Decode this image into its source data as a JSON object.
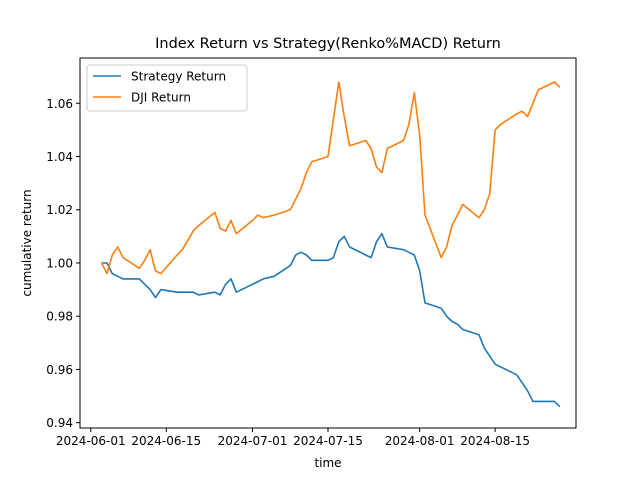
{
  "chart_data": {
    "type": "line",
    "title": "Index Return vs Strategy(Renko%MACD) Return",
    "xlabel": "time",
    "ylabel": "cumulative return",
    "xlim": [
      "2024-05-30",
      "2024-08-30"
    ],
    "ylim": [
      0.938,
      1.077
    ],
    "xticks": [
      "2024-06-01",
      "2024-06-15",
      "2024-07-01",
      "2024-07-15",
      "2024-08-01",
      "2024-08-15"
    ],
    "yticks": [
      "0.94",
      "0.96",
      "0.98",
      "1.00",
      "1.02",
      "1.04",
      "1.06"
    ],
    "grid": false,
    "legend_position": "top-left",
    "series": [
      {
        "name": "Strategy Return",
        "color": "#1f77b4",
        "x": [
          "2024-06-03",
          "2024-06-04",
          "2024-06-05",
          "2024-06-06",
          "2024-06-07",
          "2024-06-10",
          "2024-06-11",
          "2024-06-12",
          "2024-06-13",
          "2024-06-14",
          "2024-06-17",
          "2024-06-18",
          "2024-06-20",
          "2024-06-21",
          "2024-06-24",
          "2024-06-25",
          "2024-06-26",
          "2024-06-27",
          "2024-06-28",
          "2024-07-01",
          "2024-07-02",
          "2024-07-03",
          "2024-07-05",
          "2024-07-08",
          "2024-07-09",
          "2024-07-10",
          "2024-07-11",
          "2024-07-12",
          "2024-07-15",
          "2024-07-16",
          "2024-07-17",
          "2024-07-18",
          "2024-07-19",
          "2024-07-22",
          "2024-07-23",
          "2024-07-24",
          "2024-07-25",
          "2024-07-26",
          "2024-07-29",
          "2024-07-30",
          "2024-07-31",
          "2024-08-01",
          "2024-08-02",
          "2024-08-05",
          "2024-08-06",
          "2024-08-07",
          "2024-08-08",
          "2024-08-09",
          "2024-08-12",
          "2024-08-13",
          "2024-08-14",
          "2024-08-15",
          "2024-08-16",
          "2024-08-19",
          "2024-08-20",
          "2024-08-21",
          "2024-08-22",
          "2024-08-23",
          "2024-08-26",
          "2024-08-27"
        ],
        "values": [
          1.0,
          1.0,
          0.996,
          0.995,
          0.994,
          0.994,
          0.992,
          0.99,
          0.987,
          0.99,
          0.989,
          0.989,
          0.989,
          0.988,
          0.989,
          0.988,
          0.992,
          0.994,
          0.989,
          0.992,
          0.993,
          0.994,
          0.995,
          0.999,
          1.003,
          1.004,
          1.003,
          1.001,
          1.001,
          1.002,
          1.008,
          1.01,
          1.006,
          1.003,
          1.002,
          1.008,
          1.011,
          1.006,
          1.005,
          1.004,
          1.003,
          0.997,
          0.985,
          0.983,
          0.98,
          0.978,
          0.977,
          0.975,
          0.973,
          0.968,
          0.965,
          0.962,
          0.961,
          0.958,
          0.955,
          0.952,
          0.948,
          0.948,
          0.948,
          0.946
        ]
      },
      {
        "name": "DJI Return",
        "color": "#ff7f0e",
        "x": [
          "2024-06-03",
          "2024-06-04",
          "2024-06-05",
          "2024-06-06",
          "2024-06-07",
          "2024-06-10",
          "2024-06-11",
          "2024-06-12",
          "2024-06-13",
          "2024-06-14",
          "2024-06-17",
          "2024-06-18",
          "2024-06-20",
          "2024-06-21",
          "2024-06-24",
          "2024-06-25",
          "2024-06-26",
          "2024-06-27",
          "2024-06-28",
          "2024-07-01",
          "2024-07-02",
          "2024-07-03",
          "2024-07-05",
          "2024-07-08",
          "2024-07-09",
          "2024-07-10",
          "2024-07-11",
          "2024-07-12",
          "2024-07-15",
          "2024-07-16",
          "2024-07-17",
          "2024-07-18",
          "2024-07-19",
          "2024-07-22",
          "2024-07-23",
          "2024-07-24",
          "2024-07-25",
          "2024-07-26",
          "2024-07-29",
          "2024-07-30",
          "2024-07-31",
          "2024-08-01",
          "2024-08-02",
          "2024-08-05",
          "2024-08-06",
          "2024-08-07",
          "2024-08-08",
          "2024-08-09",
          "2024-08-12",
          "2024-08-13",
          "2024-08-14",
          "2024-08-15",
          "2024-08-16",
          "2024-08-19",
          "2024-08-20",
          "2024-08-21",
          "2024-08-22",
          "2024-08-23",
          "2024-08-26",
          "2024-08-27"
        ],
        "values": [
          1.0,
          0.996,
          1.003,
          1.006,
          1.002,
          0.998,
          1.001,
          1.005,
          0.997,
          0.996,
          1.003,
          1.005,
          1.012,
          1.014,
          1.019,
          1.013,
          1.012,
          1.016,
          1.011,
          1.016,
          1.018,
          1.017,
          1.018,
          1.02,
          1.024,
          1.028,
          1.034,
          1.038,
          1.04,
          1.054,
          1.068,
          1.055,
          1.044,
          1.046,
          1.043,
          1.036,
          1.034,
          1.043,
          1.046,
          1.052,
          1.064,
          1.048,
          1.018,
          1.002,
          1.006,
          1.014,
          1.018,
          1.022,
          1.017,
          1.02,
          1.026,
          1.05,
          1.052,
          1.056,
          1.057,
          1.055,
          1.06,
          1.065,
          1.068,
          1.066
        ]
      }
    ]
  }
}
